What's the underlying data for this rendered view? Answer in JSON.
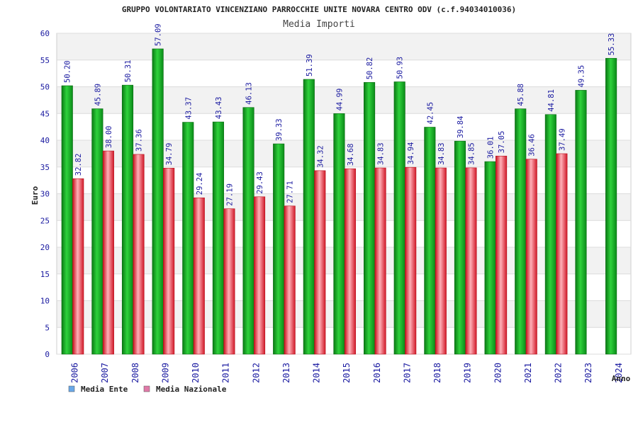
{
  "chart_data": {
    "type": "bar",
    "title": "GRUPPO VOLONTARIATO VINCENZIANO PARROCCHIE UNITE NOVARA CENTRO ODV (c.f.94034010036)",
    "subtitle": "Media Importi",
    "xlabel": "Anno",
    "ylabel": "Euro",
    "ylim": [
      0,
      60
    ],
    "yticks": [
      "0",
      "5",
      "10",
      "15",
      "20",
      "25",
      "30",
      "35",
      "40",
      "45",
      "50",
      "55",
      "60"
    ],
    "categories": [
      "2006",
      "2007",
      "2008",
      "2009",
      "2010",
      "2011",
      "2012",
      "2013",
      "2014",
      "2015",
      "2016",
      "2017",
      "2018",
      "2019",
      "2020",
      "2021",
      "2022",
      "2023",
      "2024"
    ],
    "series": [
      {
        "name": "Media Ente",
        "legend_color": "#6aa8e8",
        "bar_color": "#1fae2a",
        "values": [
          50.2,
          45.89,
          50.31,
          57.09,
          43.37,
          43.43,
          46.13,
          39.33,
          51.39,
          44.99,
          50.82,
          50.93,
          42.45,
          39.84,
          36.01,
          45.88,
          44.81,
          49.35,
          55.33
        ],
        "labels": [
          "50.20",
          "45.89",
          "50.31",
          "57.09",
          "43.37",
          "43.43",
          "46.13",
          "39.33",
          "51.39",
          "44.99",
          "50.82",
          "50.93",
          "42.45",
          "39.84",
          "36.01",
          "45.88",
          "44.81",
          "49.35",
          "55.33"
        ]
      },
      {
        "name": "Media Nazionale",
        "legend_color": "#e07aa8",
        "bar_color": "#e8303c",
        "values": [
          32.82,
          38.0,
          37.36,
          34.79,
          29.24,
          27.19,
          29.43,
          27.71,
          34.32,
          34.68,
          34.83,
          34.94,
          34.83,
          34.85,
          37.05,
          36.46,
          37.49,
          null,
          null
        ],
        "labels": [
          "32.82",
          "38.00",
          "37.36",
          "34.79",
          "29.24",
          "27.19",
          "29.43",
          "27.71",
          "34.32",
          "34.68",
          "34.83",
          "34.94",
          "34.83",
          "34.85",
          "37.05",
          "36.46",
          "37.49",
          null,
          null
        ]
      }
    ],
    "grid": true,
    "legend_position": "bottom-left"
  }
}
